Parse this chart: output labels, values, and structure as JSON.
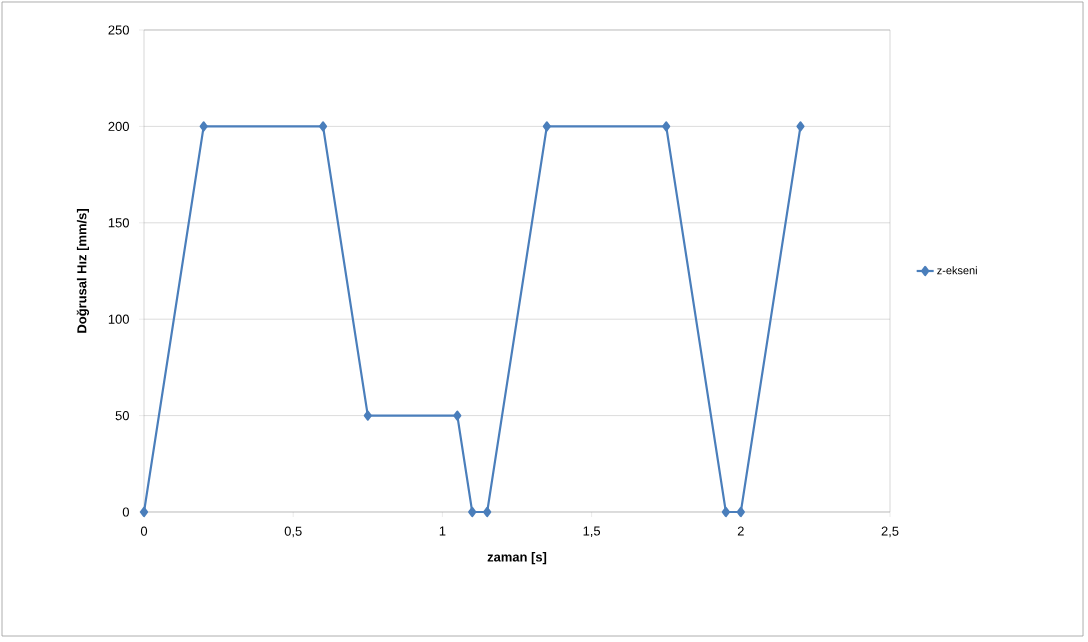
{
  "chart_data": {
    "type": "line",
    "xlabel": "zaman [s]",
    "ylabel": "Doğrusal Hız [mm/s]",
    "x": [
      0,
      0.2,
      0.6,
      0.75,
      1.05,
      1.1,
      1.15,
      1.35,
      1.75,
      1.95,
      2.0,
      2.2
    ],
    "series": [
      {
        "name": "z-ekseni",
        "color": "#4a7ebb",
        "values": [
          0,
          200,
          200,
          50,
          50,
          0,
          0,
          200,
          200,
          0,
          0,
          200
        ]
      }
    ],
    "xlim": [
      0,
      2.5
    ],
    "ylim": [
      0,
      250
    ],
    "xticks": [
      0,
      {
        "value": 0.5,
        "label": "0,5"
      },
      1,
      {
        "value": 1.5,
        "label": "1,5"
      },
      2,
      {
        "value": 2.5,
        "label": "2,5"
      }
    ],
    "yticks": [
      0,
      50,
      100,
      150,
      200,
      250
    ],
    "grid": "y",
    "legend": "right",
    "marker": "diamond",
    "line_style": "solid"
  }
}
